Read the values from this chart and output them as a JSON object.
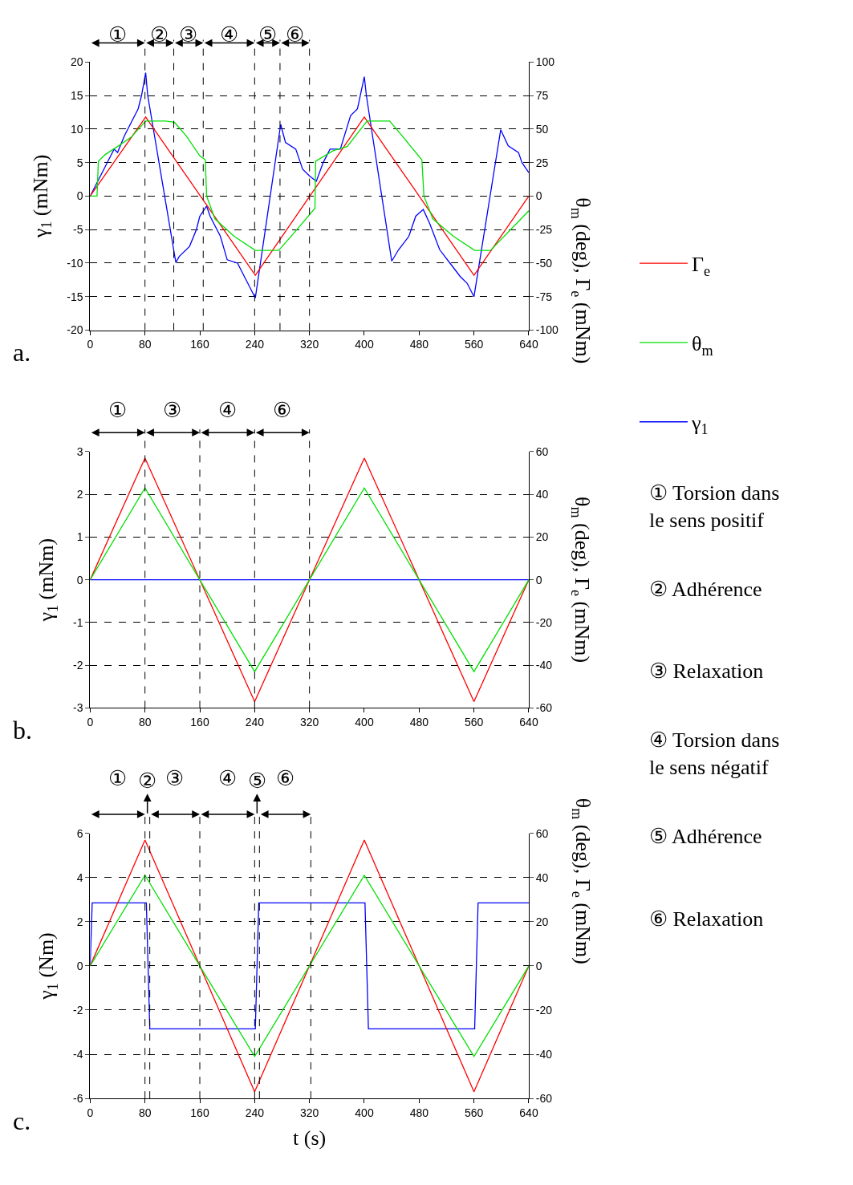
{
  "chart_data": [
    {
      "type": "line",
      "title": "a.",
      "ylabel": "γ$_{1}$ (mNm)",
      "y2label": "θ$_{m}$ (deg), Γ$_{e}$ (mNm)",
      "xlim": [
        0,
        640
      ],
      "xticks": [
        0,
        80,
        160,
        240,
        320,
        400,
        480,
        560,
        640
      ],
      "ylim": [
        -20,
        20
      ],
      "yticks": [
        -20,
        -15,
        -10,
        -5,
        0,
        5,
        10,
        15,
        20
      ],
      "y2lim": [
        -100,
        100
      ],
      "y2ticks": [
        -100,
        -75,
        -50,
        -25,
        0,
        25,
        50,
        75,
        100
      ],
      "grid": "y",
      "legend": "right",
      "marker": "none",
      "line_style": "solid",
      "series": [
        {
          "name": "Γ$_{e}$",
          "color": "#ff0000",
          "axis": "y2",
          "x": [
            0,
            81,
            241,
            400,
            560,
            640
          ],
          "values": [
            0,
            59,
            -59,
            59,
            -59,
            0
          ]
        },
        {
          "name": "θ$_{m}$",
          "color": "#00e000",
          "axis": "y2",
          "x": [
            0,
            10,
            12,
            22,
            43,
            60,
            81,
            110,
            123,
            140,
            160,
            168,
            170,
            182,
            210,
            241,
            275,
            300,
            328,
            329,
            355,
            375,
            404,
            437,
            455,
            484,
            487,
            500,
            530,
            561,
            584,
            640
          ],
          "values": [
            0,
            0,
            26,
            31,
            38,
            44,
            56,
            56,
            55,
            45,
            30,
            27,
            0,
            -17,
            -30,
            -40.5,
            -40.5,
            -26,
            -9,
            26,
            34,
            37,
            56,
            56,
            45,
            27,
            0,
            -17,
            -30,
            -40.5,
            -40.5,
            -11
          ]
        },
        {
          "name": "γ$_{1}$",
          "color": "#0000ff",
          "x": [
            0,
            10,
            20,
            30,
            35,
            40,
            50,
            60,
            70,
            75,
            81,
            84,
            125,
            130,
            145,
            155,
            160,
            170,
            175,
            190,
            200,
            215,
            230,
            241,
            278,
            285,
            300,
            310,
            320,
            330,
            340,
            350,
            365,
            380,
            390,
            400,
            403,
            440,
            450,
            465,
            475,
            486,
            495,
            510,
            525,
            540,
            550,
            560,
            599,
            610,
            625,
            630,
            640
          ],
          "values": [
            0,
            2,
            4,
            6,
            7,
            6.5,
            9,
            11,
            13,
            15,
            18.4,
            15,
            -9.9,
            -9,
            -7.5,
            -5,
            -3,
            -1.5,
            -3,
            -6,
            -9.5,
            -10,
            -13,
            -15.2,
            10.7,
            8,
            7,
            4,
            3,
            2.2,
            5,
            7,
            7,
            12,
            13,
            17.8,
            15,
            -9.7,
            -8,
            -6,
            -3,
            -2,
            -4,
            -8,
            -10,
            -12,
            -13,
            -15,
            9.9,
            7.5,
            6.5,
            5,
            3.5
          ]
        }
      ],
      "ref_lines": [
        {
          "axis": "x",
          "value": 80,
          "line_style": "dashed",
          "color": "#000000"
        },
        {
          "axis": "x",
          "value": 122,
          "line_style": "dashed",
          "color": "#000000"
        },
        {
          "axis": "x",
          "value": 165,
          "line_style": "dashed",
          "color": "#000000"
        },
        {
          "axis": "x",
          "value": 240,
          "line_style": "dashed",
          "color": "#000000"
        },
        {
          "axis": "x",
          "value": 277,
          "line_style": "dashed",
          "color": "#000000"
        },
        {
          "axis": "x",
          "value": 320,
          "line_style": "dashed",
          "color": "#000000"
        }
      ],
      "annotations": [
        "①",
        "②",
        "③",
        "④",
        "⑤",
        "⑥",
        "① Torsion dans le sens positif",
        "② Adhérence",
        "③ Relaxation",
        "④ Torsion dans le sens négatif",
        "⑤ Adhérence",
        "⑥ Relaxation"
      ]
    },
    {
      "type": "line",
      "title": "b.",
      "ylabel": "γ$_{1}$ (mNm)",
      "y2label": "θ$_{m}$ (deg), Γ$_{e}$ (mNm)",
      "xlim": [
        0,
        640
      ],
      "xticks": [
        0,
        80,
        160,
        240,
        320,
        400,
        480,
        560,
        640
      ],
      "ylim": [
        -3,
        3
      ],
      "yticks": [
        -3,
        -2,
        -1,
        0,
        1,
        2,
        3
      ],
      "y2lim": [
        -60,
        60
      ],
      "y2ticks": [
        -60,
        -40,
        -20,
        0,
        20,
        40,
        60
      ],
      "grid": "y",
      "marker": "none",
      "line_style": "solid",
      "series": [
        {
          "color": "#ff0000",
          "axis": "y2",
          "x": [
            0,
            80,
            240,
            400,
            560,
            640
          ],
          "values": [
            0,
            57,
            -57,
            57,
            -57,
            0
          ]
        },
        {
          "color": "#00e000",
          "axis": "y2",
          "x": [
            0,
            80,
            240,
            400,
            560,
            640
          ],
          "values": [
            0,
            43,
            -43,
            43,
            -43,
            0
          ]
        },
        {
          "color": "#0000ff",
          "x": [
            0,
            640
          ],
          "values": [
            0,
            0
          ]
        }
      ],
      "ref_lines": [
        {
          "axis": "x",
          "value": 80,
          "line_style": "dashed",
          "color": "#000000"
        },
        {
          "axis": "x",
          "value": 160,
          "line_style": "dashed",
          "color": "#000000"
        },
        {
          "axis": "x",
          "value": 240,
          "line_style": "dashed",
          "color": "#000000"
        },
        {
          "axis": "x",
          "value": 320,
          "line_style": "dashed",
          "color": "#000000"
        }
      ],
      "annotations": [
        "①",
        "③",
        "④",
        "⑥"
      ]
    },
    {
      "type": "line",
      "title": "c.",
      "xlabel": "t (s)",
      "ylabel": "γ$_{1}$ (Nm)",
      "y2label": "θ$_{m}$ (deg), Γ$_{e}$ (mNm)",
      "xlim": [
        0,
        640
      ],
      "xticks": [
        0,
        80,
        160,
        240,
        320,
        400,
        480,
        560,
        640
      ],
      "ylim": [
        -6,
        6
      ],
      "yticks": [
        -6,
        -4,
        -2,
        0,
        2,
        4,
        6
      ],
      "y2lim": [
        -60,
        60
      ],
      "y2ticks": [
        -60,
        -40,
        -20,
        0,
        20,
        40,
        60
      ],
      "grid": "y",
      "marker": "none",
      "line_style": "solid",
      "series": [
        {
          "color": "#ff0000",
          "axis": "y2",
          "x": [
            0,
            80,
            240,
            400,
            560,
            640
          ],
          "values": [
            0,
            57,
            -57,
            57,
            -57,
            0
          ]
        },
        {
          "color": "#00e000",
          "axis": "y2",
          "x": [
            0,
            80,
            240,
            400,
            560,
            640
          ],
          "values": [
            0,
            41,
            -41,
            41,
            -41,
            0
          ]
        },
        {
          "color": "#0000ff",
          "x": [
            0,
            3,
            82,
            87,
            241,
            246,
            401,
            406,
            561,
            566,
            640
          ],
          "values": [
            0,
            2.85,
            2.85,
            -2.85,
            -2.85,
            2.85,
            2.85,
            -2.85,
            -2.85,
            2.85,
            2.85
          ]
        }
      ],
      "ref_lines": [
        {
          "axis": "x",
          "value": 80,
          "line_style": "dashed",
          "color": "#000000"
        },
        {
          "axis": "x",
          "value": 87,
          "line_style": "dashed",
          "color": "#000000"
        },
        {
          "axis": "x",
          "value": 160,
          "line_style": "dashed",
          "color": "#000000"
        },
        {
          "axis": "x",
          "value": 240,
          "line_style": "dashed",
          "color": "#000000"
        },
        {
          "axis": "x",
          "value": 247,
          "line_style": "dashed",
          "color": "#000000"
        },
        {
          "axis": "x",
          "value": 322,
          "line_style": "dashed",
          "color": "#000000"
        }
      ],
      "annotations": [
        "①",
        "②",
        "③",
        "④",
        "⑤",
        "⑥"
      ]
    }
  ]
}
